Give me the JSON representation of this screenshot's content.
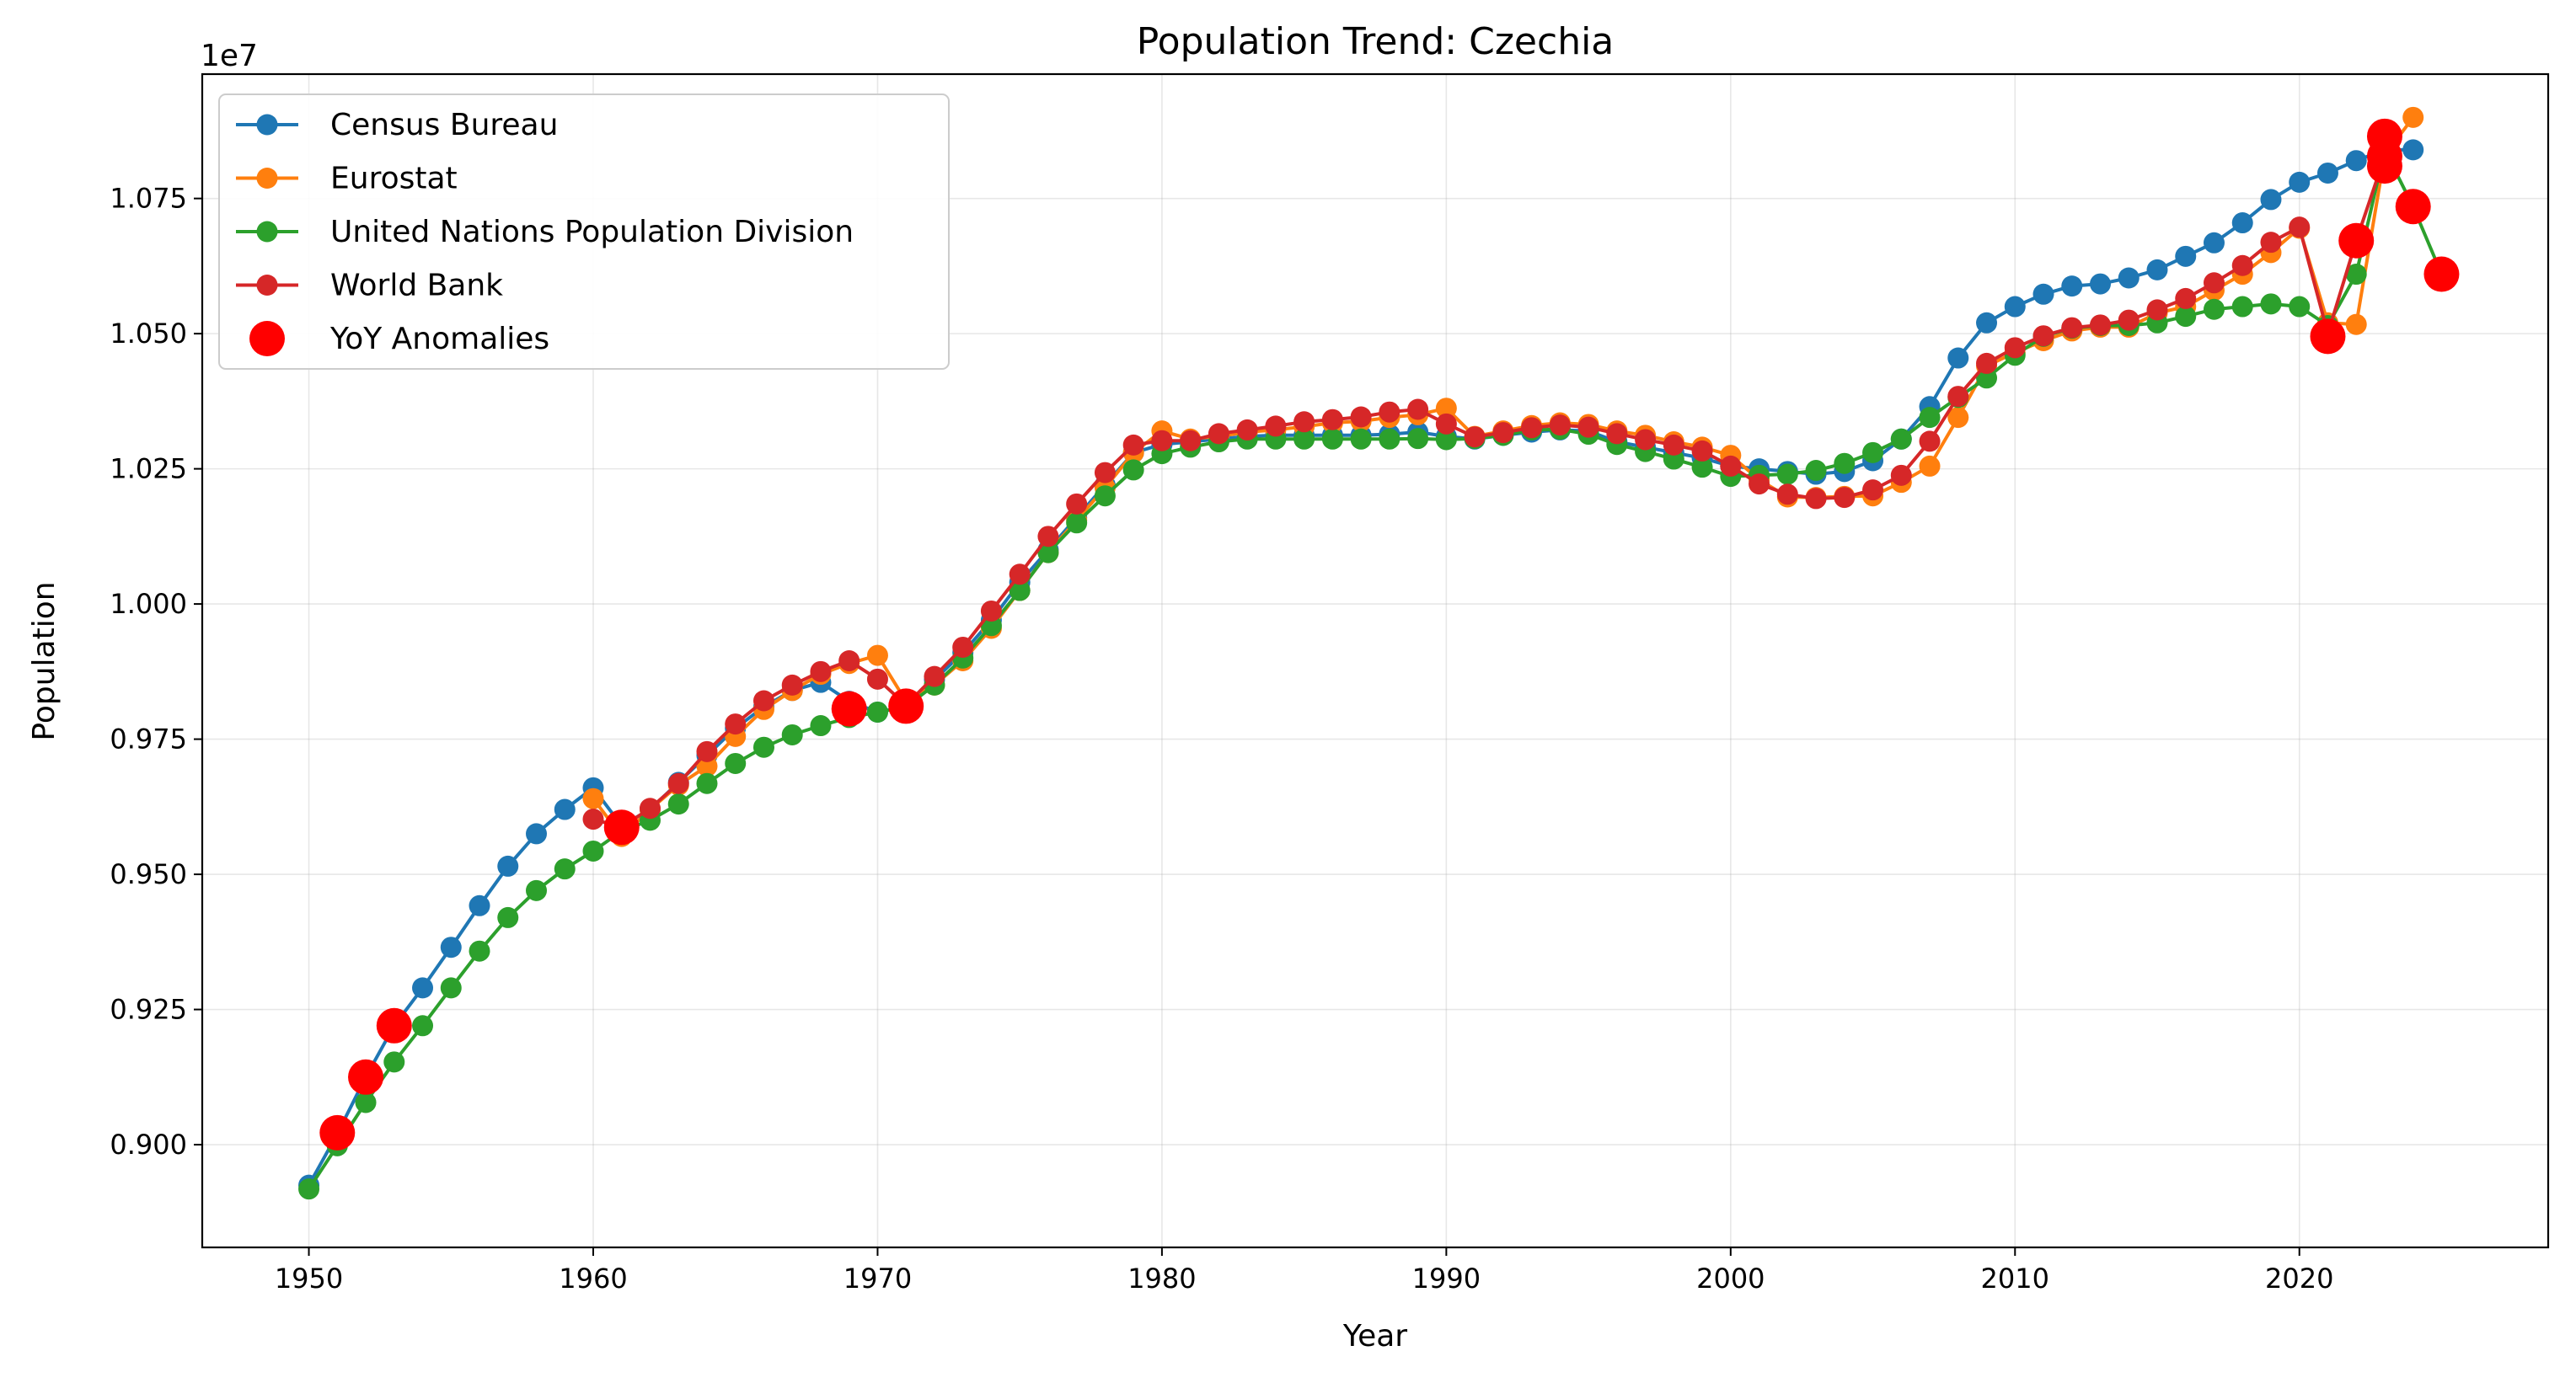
{
  "chart_data": {
    "type": "line",
    "title": "Population Trend: Czechia",
    "xlabel": "Year",
    "ylabel": "Population",
    "y_multiplier_label": "1e7",
    "xlim": [
      1946.25,
      2028.75
    ],
    "ylim": [
      8810000.0,
      10980000.0
    ],
    "grid": true,
    "legend_position": "upper left",
    "x_ticks": [
      1950,
      1960,
      1970,
      1980,
      1990,
      2000,
      2010,
      2020
    ],
    "x_tick_labels": [
      "1950",
      "1960",
      "1970",
      "1980",
      "1990",
      "2000",
      "2010",
      "2020"
    ],
    "y_ticks": [
      9000000,
      9250000,
      9500000,
      9750000,
      10000000,
      10250000,
      10500000,
      10750000
    ],
    "y_tick_labels": [
      "0.900",
      "0.925",
      "0.950",
      "0.975",
      "1.000",
      "1.025",
      "1.050",
      "1.075"
    ],
    "series": [
      {
        "name": "Census Bureau",
        "color": "#1f77b4",
        "x": [
          1950,
          1951,
          1952,
          1953,
          1954,
          1955,
          1956,
          1957,
          1958,
          1959,
          1960,
          1961,
          1962,
          1963,
          1964,
          1965,
          1966,
          1967,
          1968,
          1969,
          1970,
          1971,
          1972,
          1973,
          1974,
          1975,
          1976,
          1977,
          1978,
          1979,
          1980,
          1981,
          1982,
          1983,
          1984,
          1985,
          1986,
          1987,
          1988,
          1989,
          1990,
          1991,
          1992,
          1993,
          1994,
          1995,
          1996,
          1997,
          1998,
          1999,
          2000,
          2001,
          2002,
          2003,
          2004,
          2005,
          2006,
          2007,
          2008,
          2009,
          2010,
          2011,
          2012,
          2013,
          2014,
          2015,
          2016,
          2017,
          2018,
          2019,
          2020,
          2021,
          2022,
          2023,
          2024
        ],
        "y": [
          8925000,
          9020000,
          9125000,
          9220000,
          9290000,
          9365000,
          9442000,
          9515000,
          9575000,
          9620000,
          9660000,
          9590000,
          9620000,
          9670000,
          9720000,
          9770000,
          9810000,
          9840000,
          9855000,
          9820000,
          9800000,
          9810000,
          9860000,
          9910000,
          9970000,
          10040000,
          10100000,
          10160000,
          10220000,
          10280000,
          10295000,
          10300000,
          10305000,
          10310000,
          10312000,
          10312000,
          10312000,
          10312000,
          10314000,
          10318000,
          10310000,
          10305000,
          10312000,
          10318000,
          10322000,
          10320000,
          10300000,
          10290000,
          10280000,
          10270000,
          10255000,
          10250000,
          10245000,
          10240000,
          10245000,
          10265000,
          10305000,
          10365000,
          10455000,
          10520000,
          10550000,
          10573000,
          10588000,
          10592000,
          10603000,
          10618000,
          10643000,
          10668000,
          10705000,
          10748000,
          10780000,
          10797000,
          10820000,
          10840000,
          10840000
        ]
      },
      {
        "name": "Eurostat",
        "color": "#ff7f0e",
        "x": [
          1960,
          1961,
          1962,
          1963,
          1964,
          1965,
          1966,
          1967,
          1968,
          1969,
          1970,
          1971,
          1972,
          1973,
          1974,
          1975,
          1976,
          1977,
          1978,
          1979,
          1980,
          1981,
          1982,
          1983,
          1984,
          1985,
          1986,
          1987,
          1988,
          1989,
          1990,
          1991,
          1992,
          1993,
          1994,
          1995,
          1996,
          1997,
          1998,
          1999,
          2000,
          2001,
          2002,
          2003,
          2004,
          2005,
          2006,
          2007,
          2008,
          2009,
          2010,
          2011,
          2012,
          2013,
          2014,
          2015,
          2016,
          2017,
          2018,
          2019,
          2020,
          2021,
          2022,
          2023,
          2024
        ],
        "y": [
          9640000,
          9570000,
          9620000,
          9665000,
          9700000,
          9755000,
          9805000,
          9840000,
          9870000,
          9890000,
          9905000,
          9820000,
          9850000,
          9895000,
          9955000,
          10025000,
          10095000,
          10155000,
          10215000,
          10280000,
          10320000,
          10305000,
          10310000,
          10318000,
          10322000,
          10328000,
          10335000,
          10338000,
          10345000,
          10350000,
          10362000,
          10310000,
          10320000,
          10330000,
          10335000,
          10332000,
          10320000,
          10312000,
          10300000,
          10290000,
          10275000,
          10230000,
          10198000,
          10197000,
          10199000,
          10200000,
          10225000,
          10255000,
          10345000,
          10440000,
          10465000,
          10487000,
          10505000,
          10512000,
          10512000,
          10538000,
          10550000,
          10580000,
          10610000,
          10650000,
          10695000,
          10520000,
          10517000,
          10830000,
          10900000
        ]
      },
      {
        "name": "United Nations Population Division",
        "color": "#2ca02c",
        "x": [
          1950,
          1951,
          1952,
          1953,
          1954,
          1955,
          1956,
          1957,
          1958,
          1959,
          1960,
          1961,
          1962,
          1963,
          1964,
          1965,
          1966,
          1967,
          1968,
          1969,
          1970,
          1971,
          1972,
          1973,
          1974,
          1975,
          1976,
          1977,
          1978,
          1979,
          1980,
          1981,
          1982,
          1983,
          1984,
          1985,
          1986,
          1987,
          1988,
          1989,
          1990,
          1991,
          1992,
          1993,
          1994,
          1995,
          1996,
          1997,
          1998,
          1999,
          2000,
          2001,
          2002,
          2003,
          2004,
          2005,
          2006,
          2007,
          2008,
          2009,
          2010,
          2011,
          2012,
          2013,
          2014,
          2015,
          2016,
          2017,
          2018,
          2019,
          2020,
          2021,
          2022,
          2023,
          2024,
          2025
        ],
        "y": [
          8918000,
          8998000,
          9078000,
          9153000,
          9220000,
          9290000,
          9358000,
          9420000,
          9470000,
          9510000,
          9543000,
          9580000,
          9600000,
          9630000,
          9668000,
          9705000,
          9735000,
          9758000,
          9775000,
          9790000,
          9800000,
          9810000,
          9850000,
          9900000,
          9960000,
          10025000,
          10095000,
          10150000,
          10200000,
          10248000,
          10278000,
          10290000,
          10300000,
          10305000,
          10305000,
          10305000,
          10305000,
          10305000,
          10305000,
          10306000,
          10304000,
          10306000,
          10312000,
          10322000,
          10323000,
          10314000,
          10295000,
          10282000,
          10268000,
          10253000,
          10236000,
          10238000,
          10240000,
          10247000,
          10260000,
          10280000,
          10305000,
          10345000,
          10382000,
          10418000,
          10460000,
          10495000,
          10510000,
          10515000,
          10515000,
          10520000,
          10532000,
          10545000,
          10550000,
          10555000,
          10550000,
          10515000,
          10610000,
          10840000,
          10735000,
          10610000
        ]
      },
      {
        "name": "World Bank",
        "color": "#d62728",
        "x": [
          1960,
          1961,
          1962,
          1963,
          1964,
          1965,
          1966,
          1967,
          1968,
          1969,
          1970,
          1971,
          1972,
          1973,
          1974,
          1975,
          1976,
          1977,
          1978,
          1979,
          1980,
          1981,
          1982,
          1983,
          1984,
          1985,
          1986,
          1987,
          1988,
          1989,
          1990,
          1991,
          1992,
          1993,
          1994,
          1995,
          1996,
          1997,
          1998,
          1999,
          2000,
          2001,
          2002,
          2003,
          2004,
          2005,
          2006,
          2007,
          2008,
          2009,
          2010,
          2011,
          2012,
          2013,
          2014,
          2015,
          2016,
          2017,
          2018,
          2019,
          2020,
          2021,
          2022,
          2023
        ],
        "y": [
          9602000,
          9587000,
          9622000,
          9668000,
          9727000,
          9778000,
          9821000,
          9850000,
          9875000,
          9895000,
          9861000,
          9813000,
          9866000,
          9920000,
          9987000,
          10055000,
          10125000,
          10185000,
          10243000,
          10294000,
          10302000,
          10302000,
          10315000,
          10322000,
          10329000,
          10337000,
          10341000,
          10346000,
          10355000,
          10360000,
          10333000,
          10309000,
          10317000,
          10326000,
          10331000,
          10327000,
          10315000,
          10304000,
          10294000,
          10283000,
          10255000,
          10222000,
          10203000,
          10195000,
          10197000,
          10211000,
          10238000,
          10301000,
          10384000,
          10445000,
          10474000,
          10496000,
          10511000,
          10516000,
          10525000,
          10544000,
          10565000,
          10594000,
          10626000,
          10669000,
          10697000,
          10500000,
          10672000,
          10828000
        ]
      },
      {
        "name": "YoY Anomalies",
        "color": "#ff0000",
        "type": "scatter",
        "x": [
          1951,
          1952,
          1953,
          1961,
          1969,
          1971,
          2021,
          2022,
          2023,
          2023,
          2023,
          2024,
          2025
        ],
        "y": [
          9022000,
          9125000,
          9220000,
          9587000,
          9806000,
          9811000,
          10495000,
          10672000,
          10865000,
          10828000,
          10810000,
          10735000,
          10610000
        ]
      }
    ]
  }
}
